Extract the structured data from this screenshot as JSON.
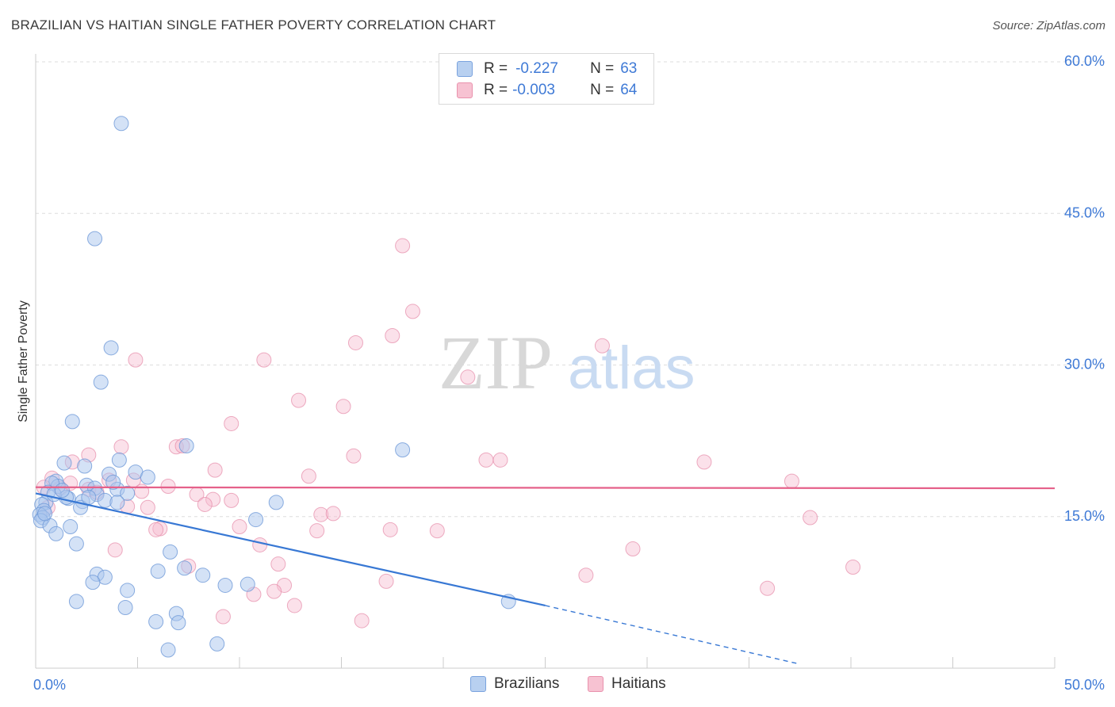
{
  "title": "BRAZILIAN VS HAITIAN SINGLE FATHER POVERTY CORRELATION CHART",
  "source": "Source: ZipAtlas.com",
  "watermark": {
    "zip": "ZIP",
    "atlas": "atlas"
  },
  "legend": {
    "rows": [
      {
        "r_label": "R =",
        "r_value": "-0.227",
        "n_label": "N =",
        "n_value": "63"
      },
      {
        "r_label": "R =",
        "r_value": "-0.003",
        "n_label": "N =",
        "n_value": "64"
      }
    ]
  },
  "bottom_legend": {
    "brazilians": "Brazilians",
    "haitians": "Haitians"
  },
  "colors": {
    "blue_fill": "#a9c6ee",
    "blue_stroke": "#6f9ad8",
    "blue_line": "#3878d4",
    "pink_fill": "#f6bdd0",
    "pink_stroke": "#e58aa8",
    "pink_line": "#e5618a",
    "tick_label": "#3f7ad6",
    "grid": "#dddddd"
  },
  "chart_data": {
    "type": "scatter",
    "title": "BRAZILIAN VS HAITIAN SINGLE FATHER POVERTY CORRELATION CHART",
    "xlabel": "",
    "ylabel": "Single Father Poverty",
    "xlim": [
      0,
      50
    ],
    "ylim": [
      0,
      60
    ],
    "x_tick_labels": [
      "0.0%",
      "50.0%"
    ],
    "y_ticks": [
      15,
      30,
      45,
      60
    ],
    "y_tick_labels": [
      "15.0%",
      "30.0%",
      "45.0%",
      "60.0%"
    ],
    "series": [
      {
        "name": "Brazilians",
        "r": -0.227,
        "n": 63,
        "trend": {
          "x0": 0,
          "y0": 17.3,
          "x1": 25,
          "y1": 6.2,
          "dash_to_x": 37.5,
          "dash_to_y": 0.4
        },
        "points": [
          [
            4.2,
            53.9
          ],
          [
            2.9,
            42.5
          ],
          [
            3.7,
            31.7
          ],
          [
            3.2,
            28.3
          ],
          [
            1.8,
            24.4
          ],
          [
            18.0,
            21.6
          ],
          [
            7.4,
            22.0
          ],
          [
            4.1,
            20.6
          ],
          [
            1.4,
            20.3
          ],
          [
            4.9,
            19.4
          ],
          [
            5.5,
            18.9
          ],
          [
            2.4,
            20.0
          ],
          [
            3.6,
            19.2
          ],
          [
            1.0,
            18.5
          ],
          [
            1.1,
            18.0
          ],
          [
            0.8,
            18.3
          ],
          [
            2.5,
            18.1
          ],
          [
            2.9,
            17.8
          ],
          [
            4.0,
            17.7
          ],
          [
            4.5,
            17.3
          ],
          [
            3.0,
            17.2
          ],
          [
            0.6,
            17.4
          ],
          [
            1.6,
            16.8
          ],
          [
            0.5,
            16.4
          ],
          [
            2.3,
            16.5
          ],
          [
            0.3,
            16.2
          ],
          [
            0.4,
            15.6
          ],
          [
            0.2,
            15.2
          ],
          [
            0.35,
            14.9
          ],
          [
            0.25,
            14.6
          ],
          [
            2.2,
            15.9
          ],
          [
            1.5,
            16.9
          ],
          [
            3.4,
            16.6
          ],
          [
            4.0,
            16.4
          ],
          [
            11.8,
            16.4
          ],
          [
            10.8,
            14.7
          ],
          [
            1.7,
            14.0
          ],
          [
            0.7,
            14.1
          ],
          [
            1.0,
            13.3
          ],
          [
            2.0,
            12.3
          ],
          [
            6.6,
            11.5
          ],
          [
            6.0,
            9.6
          ],
          [
            7.3,
            9.9
          ],
          [
            8.2,
            9.2
          ],
          [
            3.0,
            9.3
          ],
          [
            3.4,
            9.0
          ],
          [
            2.8,
            8.5
          ],
          [
            9.3,
            8.2
          ],
          [
            10.4,
            8.3
          ],
          [
            4.5,
            7.7
          ],
          [
            2.0,
            6.6
          ],
          [
            4.4,
            6.0
          ],
          [
            23.2,
            6.6
          ],
          [
            6.9,
            5.4
          ],
          [
            7.0,
            4.5
          ],
          [
            5.9,
            4.6
          ],
          [
            8.9,
            2.4
          ],
          [
            6.5,
            1.8
          ],
          [
            0.9,
            17.2
          ],
          [
            1.3,
            17.6
          ],
          [
            2.6,
            16.9
          ],
          [
            0.45,
            15.3
          ],
          [
            3.8,
            18.4
          ]
        ]
      },
      {
        "name": "Haitians",
        "r": -0.003,
        "n": 64,
        "trend": {
          "x0": 0,
          "y0": 17.9,
          "x1": 50,
          "y1": 17.8
        },
        "points": [
          [
            18.0,
            41.8
          ],
          [
            18.5,
            35.3
          ],
          [
            15.7,
            32.2
          ],
          [
            17.5,
            32.9
          ],
          [
            27.8,
            31.9
          ],
          [
            4.9,
            30.5
          ],
          [
            11.2,
            30.5
          ],
          [
            21.2,
            28.8
          ],
          [
            12.9,
            26.5
          ],
          [
            15.1,
            25.9
          ],
          [
            9.6,
            24.2
          ],
          [
            4.2,
            21.9
          ],
          [
            6.9,
            21.9
          ],
          [
            7.2,
            22.0
          ],
          [
            15.6,
            21.0
          ],
          [
            2.6,
            21.1
          ],
          [
            22.1,
            20.6
          ],
          [
            22.8,
            20.6
          ],
          [
            32.8,
            20.4
          ],
          [
            1.8,
            20.4
          ],
          [
            8.8,
            19.6
          ],
          [
            13.4,
            19.0
          ],
          [
            0.8,
            18.8
          ],
          [
            4.8,
            18.6
          ],
          [
            3.6,
            18.6
          ],
          [
            6.5,
            18.0
          ],
          [
            0.4,
            17.9
          ],
          [
            37.1,
            18.5
          ],
          [
            1.2,
            17.8
          ],
          [
            2.6,
            17.7
          ],
          [
            3.0,
            17.4
          ],
          [
            5.2,
            17.5
          ],
          [
            7.9,
            17.2
          ],
          [
            8.7,
            16.7
          ],
          [
            9.6,
            16.6
          ],
          [
            8.3,
            16.2
          ],
          [
            4.5,
            16.0
          ],
          [
            5.5,
            15.9
          ],
          [
            14.0,
            15.2
          ],
          [
            14.6,
            15.3
          ],
          [
            38.0,
            14.9
          ],
          [
            10.0,
            14.0
          ],
          [
            13.8,
            13.6
          ],
          [
            17.4,
            13.7
          ],
          [
            19.7,
            13.6
          ],
          [
            6.1,
            13.8
          ],
          [
            5.9,
            13.7
          ],
          [
            11.0,
            12.2
          ],
          [
            3.9,
            11.7
          ],
          [
            29.3,
            11.8
          ],
          [
            7.5,
            10.1
          ],
          [
            11.9,
            10.3
          ],
          [
            40.1,
            10.0
          ],
          [
            27.0,
            9.2
          ],
          [
            17.2,
            8.6
          ],
          [
            12.2,
            8.2
          ],
          [
            11.7,
            7.6
          ],
          [
            10.7,
            7.3
          ],
          [
            35.9,
            7.9
          ],
          [
            12.7,
            6.2
          ],
          [
            9.2,
            5.1
          ],
          [
            16.0,
            4.7
          ],
          [
            0.6,
            15.9
          ],
          [
            1.7,
            18.3
          ]
        ]
      }
    ]
  }
}
